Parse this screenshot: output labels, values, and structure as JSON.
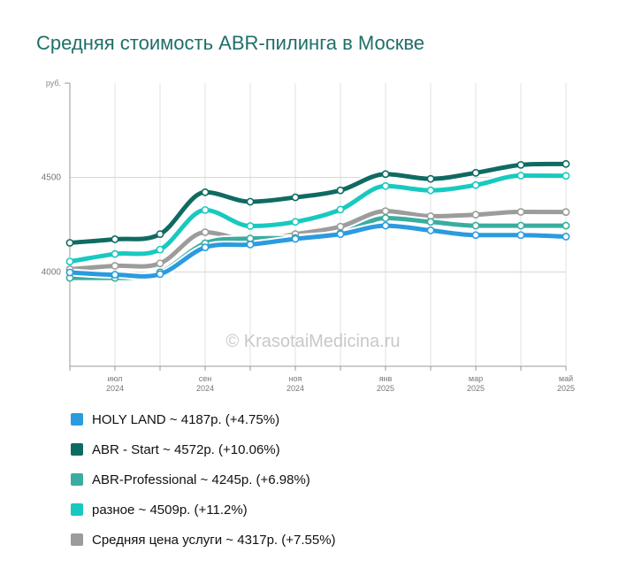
{
  "title": "Средняя стоимость ABR-пилинга в Москве",
  "watermark": "© KrasotaiMedicina.ru",
  "chart_data": {
    "type": "line",
    "y_unit_label": "руб.",
    "ylim": [
      3500,
      5000
    ],
    "y_ticks": [
      {
        "value": 4000,
        "label": "4000"
      },
      {
        "value": 4500,
        "label": "4500"
      }
    ],
    "x_ticks": [
      {
        "i": 1,
        "month": "июл",
        "year": "2024"
      },
      {
        "i": 3,
        "month": "сен",
        "year": "2024"
      },
      {
        "i": 5,
        "month": "ноя",
        "year": "2024"
      },
      {
        "i": 7,
        "month": "янв",
        "year": "2025"
      },
      {
        "i": 9,
        "month": "мар",
        "year": "2025"
      },
      {
        "i": 11,
        "month": "май",
        "year": "2025"
      }
    ],
    "x": [
      "2024-06",
      "2024-07",
      "2024-08",
      "2024-09",
      "2024-10",
      "2024-11",
      "2024-12",
      "2025-01",
      "2025-02",
      "2025-03",
      "2025-04",
      "2025-05"
    ],
    "grid": true,
    "series": [
      {
        "name": "HOLY LAND",
        "color": "#2b9bdf",
        "summary": "HOLY LAND ~ 4187р. (+4.75%)",
        "values": [
          3997,
          3985,
          3988,
          4130,
          4145,
          4175,
          4200,
          4245,
          4220,
          4195,
          4195,
          4187
        ]
      },
      {
        "name": "ABR - Start",
        "color": "#0f6b62",
        "summary": "ABR - Start ~ 4572р. (+10.06%)",
        "values": [
          4154,
          4173,
          4200,
          4422,
          4372,
          4395,
          4432,
          4518,
          4493,
          4525,
          4567,
          4572
        ]
      },
      {
        "name": "ABR-Professional",
        "color": "#3aada0",
        "summary": "ABR-Professional ~ 4245р. (+6.98%)",
        "values": [
          3968,
          3968,
          3998,
          4152,
          4177,
          4180,
          4205,
          4285,
          4265,
          4245,
          4245,
          4245
        ]
      },
      {
        "name": "разное",
        "color": "#19c9c0",
        "summary": "разное ~ 4509р. (+11.2%)",
        "values": [
          4055,
          4095,
          4118,
          4328,
          4243,
          4265,
          4330,
          4455,
          4432,
          4460,
          4510,
          4509
        ]
      },
      {
        "name": "Средняя цена услуги",
        "color": "#9c9c9c",
        "summary": "Средняя цена услуги ~ 4317р. (+7.55%)",
        "values": [
          4014,
          4032,
          4045,
          4210,
          4168,
          4200,
          4240,
          4322,
          4295,
          4303,
          4318,
          4317
        ]
      }
    ]
  }
}
